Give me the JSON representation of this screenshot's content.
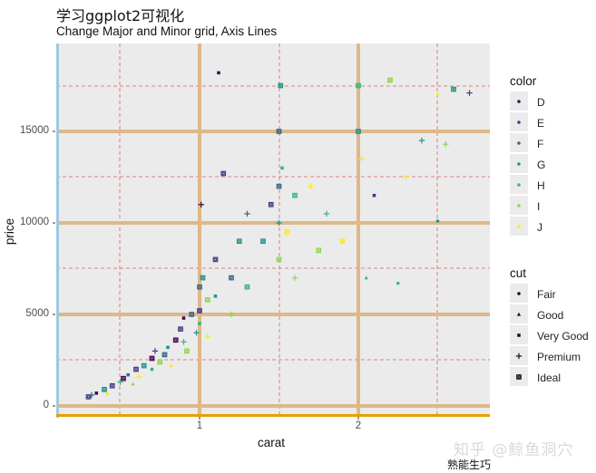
{
  "header": {
    "title": "学习ggplot2可视化",
    "subtitle": "Change Major and Minor grid, Axis Lines"
  },
  "axes": {
    "x_label": "carat",
    "y_label": "price",
    "x_ticks": [
      "1",
      "2"
    ],
    "y_ticks": [
      "0",
      "5000",
      "10000",
      "15000"
    ]
  },
  "legend_color": {
    "title": "color",
    "items": [
      {
        "label": "D",
        "hex": "#440154"
      },
      {
        "label": "E",
        "hex": "#443a83"
      },
      {
        "label": "F",
        "hex": "#31688e"
      },
      {
        "label": "G",
        "hex": "#21908c"
      },
      {
        "label": "H",
        "hex": "#35b779"
      },
      {
        "label": "I",
        "hex": "#8fd744"
      },
      {
        "label": "J",
        "hex": "#fde725"
      }
    ]
  },
  "legend_cut": {
    "title": "cut",
    "items": [
      {
        "label": "Fair",
        "shape": "circle"
      },
      {
        "label": "Good",
        "shape": "triangle"
      },
      {
        "label": "Very Good",
        "shape": "square"
      },
      {
        "label": "Premium",
        "shape": "plus"
      },
      {
        "label": "Ideal",
        "shape": "square-cross"
      }
    ]
  },
  "theme": {
    "panel_bg": "#ebebeb",
    "major_grid": "#deb887",
    "minor_grid": "#e06060",
    "y_axis_line": "#9ecae1",
    "x_axis_line": "#e69f00"
  },
  "watermark": {
    "text": "知乎 @鲸鱼洞穴",
    "sub": "熟能生巧"
  },
  "chart_data": {
    "type": "scatter",
    "title": "学习ggplot2可视化",
    "subtitle": "Change Major and Minor grid, Axis Lines",
    "xlabel": "carat",
    "ylabel": "price",
    "xlim": [
      0.1,
      2.8
    ],
    "ylim": [
      -300,
      19500
    ],
    "x_major_ticks": [
      1,
      2
    ],
    "x_minor_breaks": [
      0.5,
      1.5,
      2.5
    ],
    "y_major_ticks": [
      0,
      5000,
      10000,
      15000
    ],
    "y_minor_breaks": [
      2500,
      7500,
      12500,
      17500
    ],
    "grid": {
      "major": "solid tan, thick",
      "minor": "red dashed"
    },
    "legend_position": "right",
    "color_by": "color (D-J, viridis)",
    "shape_by": "cut (Fair, Good, Very Good, Premium, Ideal)",
    "points": [
      {
        "x": 0.3,
        "y": 500,
        "color": "E",
        "cut": "Ideal"
      },
      {
        "x": 0.32,
        "y": 600,
        "color": "F",
        "cut": "Premium"
      },
      {
        "x": 0.35,
        "y": 700,
        "color": "D",
        "cut": "Very Good"
      },
      {
        "x": 0.4,
        "y": 900,
        "color": "G",
        "cut": "Ideal"
      },
      {
        "x": 0.42,
        "y": 650,
        "color": "J",
        "cut": "Fair"
      },
      {
        "x": 0.45,
        "y": 1100,
        "color": "E",
        "cut": "Ideal"
      },
      {
        "x": 0.5,
        "y": 1300,
        "color": "H",
        "cut": "Premium"
      },
      {
        "x": 0.52,
        "y": 1500,
        "color": "D",
        "cut": "Ideal"
      },
      {
        "x": 0.55,
        "y": 1700,
        "color": "F",
        "cut": "Very Good"
      },
      {
        "x": 0.58,
        "y": 1200,
        "color": "I",
        "cut": "Good"
      },
      {
        "x": 0.6,
        "y": 2000,
        "color": "E",
        "cut": "Ideal"
      },
      {
        "x": 0.62,
        "y": 1600,
        "color": "J",
        "cut": "Premium"
      },
      {
        "x": 0.65,
        "y": 2200,
        "color": "G",
        "cut": "Ideal"
      },
      {
        "x": 0.7,
        "y": 2600,
        "color": "D",
        "cut": "Ideal"
      },
      {
        "x": 0.7,
        "y": 2000,
        "color": "H",
        "cut": "Very Good"
      },
      {
        "x": 0.72,
        "y": 3000,
        "color": "E",
        "cut": "Premium"
      },
      {
        "x": 0.75,
        "y": 2400,
        "color": "I",
        "cut": "Ideal"
      },
      {
        "x": 0.78,
        "y": 2800,
        "color": "F",
        "cut": "Ideal"
      },
      {
        "x": 0.8,
        "y": 3200,
        "color": "G",
        "cut": "Very Good"
      },
      {
        "x": 0.82,
        "y": 2200,
        "color": "J",
        "cut": "Good"
      },
      {
        "x": 0.85,
        "y": 3600,
        "color": "D",
        "cut": "Ideal"
      },
      {
        "x": 0.88,
        "y": 4200,
        "color": "E",
        "cut": "Ideal"
      },
      {
        "x": 0.9,
        "y": 3500,
        "color": "H",
        "cut": "Premium"
      },
      {
        "x": 0.9,
        "y": 4800,
        "color": "D",
        "cut": "Very Good"
      },
      {
        "x": 0.92,
        "y": 3000,
        "color": "I",
        "cut": "Ideal"
      },
      {
        "x": 0.95,
        "y": 5000,
        "color": "F",
        "cut": "Ideal"
      },
      {
        "x": 0.98,
        "y": 4000,
        "color": "G",
        "cut": "Premium"
      },
      {
        "x": 1.0,
        "y": 5200,
        "color": "E",
        "cut": "Ideal"
      },
      {
        "x": 1.0,
        "y": 4500,
        "color": "H",
        "cut": "Very Good"
      },
      {
        "x": 1.0,
        "y": 6500,
        "color": "F",
        "cut": "Ideal"
      },
      {
        "x": 1.01,
        "y": 11000,
        "color": "D",
        "cut": "Premium"
      },
      {
        "x": 1.02,
        "y": 7000,
        "color": "G",
        "cut": "Ideal"
      },
      {
        "x": 1.05,
        "y": 5800,
        "color": "I",
        "cut": "Ideal"
      },
      {
        "x": 1.05,
        "y": 3800,
        "color": "J",
        "cut": "Premium"
      },
      {
        "x": 1.1,
        "y": 8000,
        "color": "E",
        "cut": "Ideal"
      },
      {
        "x": 1.1,
        "y": 6000,
        "color": "G",
        "cut": "Very Good"
      },
      {
        "x": 1.12,
        "y": 18200,
        "color": "D",
        "cut": "Very Good"
      },
      {
        "x": 1.15,
        "y": 12700,
        "color": "E",
        "cut": "Ideal"
      },
      {
        "x": 1.2,
        "y": 7000,
        "color": "F",
        "cut": "Ideal"
      },
      {
        "x": 1.2,
        "y": 5000,
        "color": "I",
        "cut": "Premium"
      },
      {
        "x": 1.25,
        "y": 9000,
        "color": "G",
        "cut": "Ideal"
      },
      {
        "x": 1.3,
        "y": 10500,
        "color": "F",
        "cut": "Premium"
      },
      {
        "x": 1.3,
        "y": 6500,
        "color": "H",
        "cut": "Ideal"
      },
      {
        "x": 1.4,
        "y": 9000,
        "color": "G",
        "cut": "Ideal"
      },
      {
        "x": 1.45,
        "y": 11000,
        "color": "E",
        "cut": "Ideal"
      },
      {
        "x": 1.5,
        "y": 12000,
        "color": "F",
        "cut": "Ideal"
      },
      {
        "x": 1.5,
        "y": 10000,
        "color": "G",
        "cut": "Premium"
      },
      {
        "x": 1.5,
        "y": 8000,
        "color": "I",
        "cut": "Ideal"
      },
      {
        "x": 1.5,
        "y": 15000,
        "color": "F",
        "cut": "Ideal"
      },
      {
        "x": 1.51,
        "y": 17500,
        "color": "G",
        "cut": "Ideal"
      },
      {
        "x": 1.52,
        "y": 13000,
        "color": "H",
        "cut": "Very Good"
      },
      {
        "x": 1.55,
        "y": 9500,
        "color": "J",
        "cut": "Ideal"
      },
      {
        "x": 1.6,
        "y": 11500,
        "color": "H",
        "cut": "Ideal"
      },
      {
        "x": 1.6,
        "y": 7000,
        "color": "I",
        "cut": "Premium"
      },
      {
        "x": 1.7,
        "y": 12000,
        "color": "J",
        "cut": "Premium"
      },
      {
        "x": 1.75,
        "y": 8500,
        "color": "I",
        "cut": "Ideal"
      },
      {
        "x": 1.8,
        "y": 10500,
        "color": "H",
        "cut": "Premium"
      },
      {
        "x": 1.9,
        "y": 9000,
        "color": "J",
        "cut": "Ideal"
      },
      {
        "x": 2.0,
        "y": 15000,
        "color": "G",
        "cut": "Ideal"
      },
      {
        "x": 2.0,
        "y": 17500,
        "color": "H",
        "cut": "Ideal"
      },
      {
        "x": 2.02,
        "y": 13500,
        "color": "J",
        "cut": "Premium"
      },
      {
        "x": 2.05,
        "y": 7000,
        "color": "H",
        "cut": "Good"
      },
      {
        "x": 2.1,
        "y": 11500,
        "color": "E",
        "cut": "Very Good"
      },
      {
        "x": 2.2,
        "y": 17800,
        "color": "I",
        "cut": "Ideal"
      },
      {
        "x": 2.25,
        "y": 6700,
        "color": "H",
        "cut": "Fair"
      },
      {
        "x": 2.3,
        "y": 12500,
        "color": "J",
        "cut": "Premium"
      },
      {
        "x": 2.4,
        "y": 14500,
        "color": "G",
        "cut": "Premium"
      },
      {
        "x": 2.5,
        "y": 17000,
        "color": "J",
        "cut": "Fair"
      },
      {
        "x": 2.5,
        "y": 10100,
        "color": "G",
        "cut": "Fair"
      },
      {
        "x": 2.55,
        "y": 14300,
        "color": "I",
        "cut": "Premium"
      },
      {
        "x": 2.6,
        "y": 17300,
        "color": "G",
        "cut": "Ideal"
      },
      {
        "x": 2.7,
        "y": 17100,
        "color": "E",
        "cut": "Premium"
      }
    ]
  }
}
